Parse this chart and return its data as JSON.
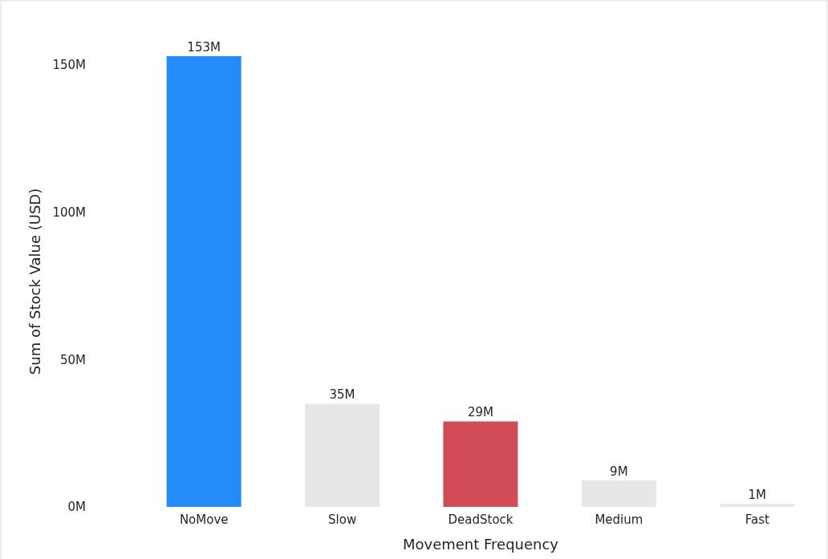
{
  "chart_data": {
    "type": "bar",
    "xlabel": "Movement Frequency",
    "ylabel": "Sum of Stock Value (USD)",
    "categories": [
      "NoMove",
      "Slow",
      "DeadStock",
      "Medium",
      "Fast"
    ],
    "values": [
      153000000,
      35000000,
      29000000,
      9000000,
      1000000
    ],
    "colors": [
      "#238bf8",
      "#e6e6e6",
      "#d14c56",
      "#e6e6e6",
      "#e6e6e6"
    ],
    "value_labels": [
      "153M",
      "35M",
      "29M",
      "9M",
      "1M"
    ],
    "ylim": [
      0,
      153000000
    ],
    "yticks": [
      {
        "value": 0,
        "label": "0M"
      },
      {
        "value": 50000000,
        "label": "50M"
      },
      {
        "value": 100000000,
        "label": "100M"
      },
      {
        "value": 150000000,
        "label": "150M"
      }
    ]
  }
}
